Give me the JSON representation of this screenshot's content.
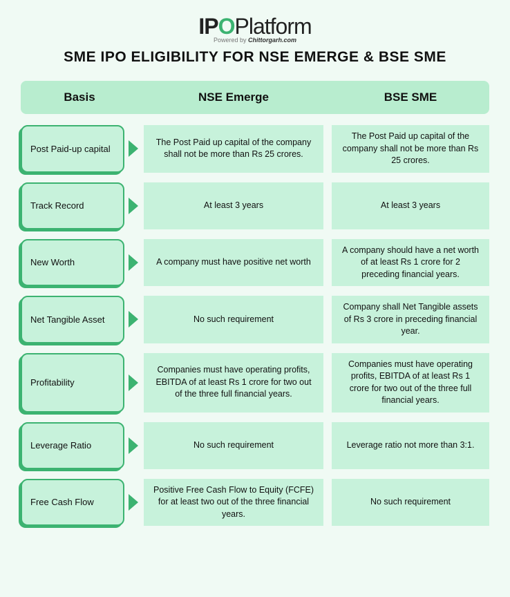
{
  "brand": {
    "part1": "IP",
    "o": "O",
    "part2": "Platform",
    "powered_prefix": "Powered by ",
    "powered_by": "Chittorgarh.com"
  },
  "title": "SME IPO ELIGIBILITY FOR NSE EMERGE & BSE SME",
  "headers": {
    "basis": "Basis",
    "nse": "NSE Emerge",
    "bse": "BSE SME"
  },
  "rows": [
    {
      "basis": "Post Paid-up capital",
      "nse": "The Post Paid up capital of the company shall not be more than Rs 25 crores.",
      "bse": "The Post Paid up capital of the company shall not be more than Rs 25 crores."
    },
    {
      "basis": "Track Record",
      "nse": "At least 3 years",
      "bse": "At least 3 years"
    },
    {
      "basis": "New Worth",
      "nse": "A company must have positive net worth",
      "bse": "A company should have a net worth of  at least  Rs 1 crore  for 2 preceding financial years."
    },
    {
      "basis": "Net Tangible Asset",
      "nse": "No such requirement",
      "bse": "Company shall Net Tangible assets of Rs 3 crore in preceding financial year."
    },
    {
      "basis": "Profitability",
      "nse": "Companies must have operating profits, EBITDA of at least Rs 1 crore for two out of the three full financial years.",
      "bse": "Companies must have operating profits, EBITDA of at least Rs 1 crore for two out of the three full financial years."
    },
    {
      "basis": "Leverage Ratio",
      "nse": "No such requirement",
      "bse": "Leverage ratio not more than 3:1."
    },
    {
      "basis": "Free Cash Flow",
      "nse": "Positive Free Cash Flow to Equity (FCFE) for at least two out of the three financial years.",
      "bse": "No such requirement"
    }
  ],
  "style": {
    "page_bg": "#f0faf4",
    "card_bg": "#c7f2db",
    "header_bg": "#b8edcf",
    "accent": "#3cb371",
    "text": "#111111"
  }
}
